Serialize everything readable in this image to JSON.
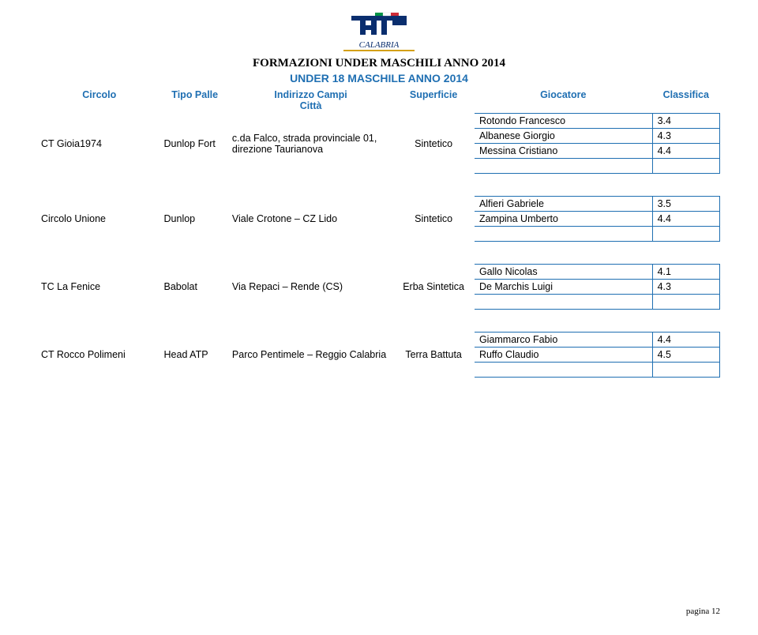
{
  "logo": {
    "fit_text": "FIT",
    "region": "CALABRIA"
  },
  "titles": {
    "main": "FORMAZIONI UNDER MASCHILI ANNO 2014",
    "sub": "UNDER 18 MASCHILE ANNO 2014"
  },
  "colors": {
    "header_text": "#1f6fb2",
    "border": "#1f6fb2",
    "body_text": "#000000",
    "background": "#ffffff"
  },
  "header": {
    "circolo": "Circolo",
    "tipo_palle": "Tipo Palle",
    "indirizzo": "Indirizzo Campi",
    "citta": "Città",
    "superficie": "Superficie",
    "giocatore": "Giocatore",
    "classifica": "Classifica"
  },
  "rows": [
    {
      "circolo": "CT Gioia1974",
      "tipo_palle": "Dunlop Fort",
      "indirizzo": "c.da Falco, strada provinciale 01, direzione Taurianova",
      "superficie": "Sintetico",
      "players": [
        {
          "name": "Rotondo Francesco",
          "class": "3.4"
        },
        {
          "name": "Albanese Giorgio",
          "class": "4.3"
        },
        {
          "name": "Messina Cristiano",
          "class": "4.4"
        },
        {
          "name": "",
          "class": ""
        }
      ]
    },
    {
      "circolo": "Circolo Unione",
      "tipo_palle": "Dunlop",
      "indirizzo": "Viale Crotone – CZ Lido",
      "superficie": "Sintetico",
      "players": [
        {
          "name": "Alfieri Gabriele",
          "class": "3.5"
        },
        {
          "name": "Zampina Umberto",
          "class": "4.4"
        },
        {
          "name": "",
          "class": ""
        }
      ]
    },
    {
      "circolo": "TC La Fenice",
      "tipo_palle": "Babolat",
      "indirizzo": "Via Repaci – Rende (CS)",
      "superficie": "Erba Sintetica",
      "players": [
        {
          "name": "Gallo Nicolas",
          "class": "4.1"
        },
        {
          "name": "De Marchis Luigi",
          "class": "4.3"
        },
        {
          "name": "",
          "class": ""
        }
      ]
    },
    {
      "circolo": "CT Rocco Polimeni",
      "tipo_palle": "Head ATP",
      "indirizzo": "Parco Pentimele – Reggio Calabria",
      "superficie": "Terra Battuta",
      "players": [
        {
          "name": "Giammarco Fabio",
          "class": "4.4"
        },
        {
          "name": "Ruffo Claudio",
          "class": "4.5"
        },
        {
          "name": "",
          "class": ""
        }
      ]
    }
  ],
  "page_label": "pagina",
  "page_number": "12"
}
